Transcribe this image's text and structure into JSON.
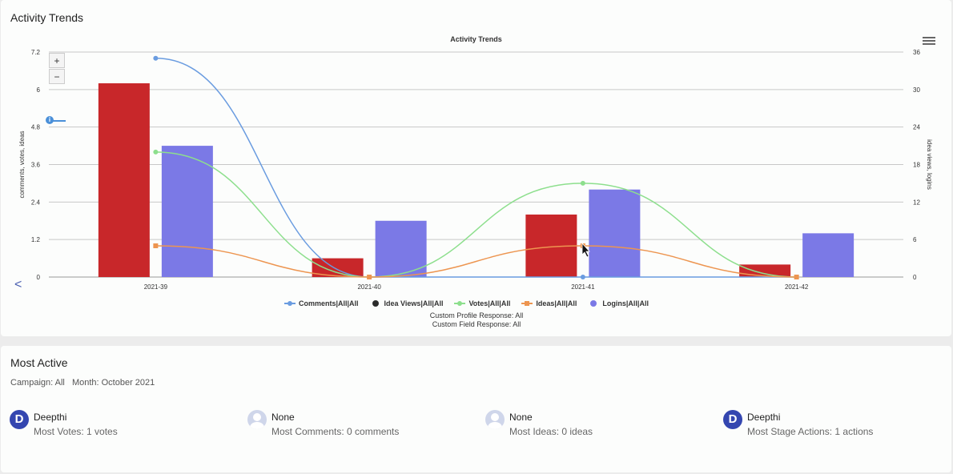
{
  "activity_card": {
    "title": "Activity Trends",
    "zoom_in": "+",
    "zoom_out": "−",
    "back_label": "<",
    "info_label": "i",
    "subtitle_lines": [
      "Custom Profile Response: All",
      "Custom Field Response: All"
    ]
  },
  "chart_data": {
    "type": "bar",
    "title": "Activity Trends",
    "categories": [
      "2021-39",
      "2021-40",
      "2021-41",
      "2021-42"
    ],
    "left_axis": {
      "label": "comments, votes, ideas",
      "ticks": [
        "0",
        "1.2",
        "2.4",
        "3.6",
        "4.8",
        "6",
        "7.2"
      ],
      "range": [
        0,
        7.2
      ]
    },
    "right_axis": {
      "label": "idea views, logins",
      "ticks": [
        "0",
        "6",
        "12",
        "18",
        "24",
        "30",
        "36"
      ],
      "range": [
        0,
        36
      ]
    },
    "series": [
      {
        "name": "Comments|All|All",
        "kind": "line",
        "axis": "left",
        "color": "#6a9ce0",
        "marker": "circle",
        "values": [
          7,
          0,
          0,
          0
        ]
      },
      {
        "name": "Idea Views|All|All",
        "kind": "bar",
        "axis": "right",
        "color": "#c8272a",
        "marker": "circle",
        "legend_color": "#2b2b2b",
        "values": [
          31,
          3,
          10,
          2
        ]
      },
      {
        "name": "Votes|All|All",
        "kind": "line",
        "axis": "left",
        "color": "#8ddf8d",
        "marker": "circle",
        "values": [
          4,
          0,
          3,
          0
        ]
      },
      {
        "name": "Ideas|All|All",
        "kind": "line",
        "axis": "left",
        "color": "#ed9550",
        "marker": "square",
        "values": [
          1,
          0,
          1,
          0
        ]
      },
      {
        "name": "Logins|All|All",
        "kind": "bar",
        "axis": "right",
        "color": "#7b79e6",
        "marker": "circle",
        "values": [
          21,
          9,
          14,
          7
        ]
      }
    ],
    "legend_position": "bottom",
    "grid": true
  },
  "most_active": {
    "title": "Most Active",
    "filters": [
      "Campaign: All",
      "Month: October 2021"
    ],
    "users": [
      {
        "name": "Deepthi",
        "stat": "Most Votes: 1 votes",
        "avatar": "initial",
        "initial": "D"
      },
      {
        "name": "None",
        "stat": "Most Comments: 0 comments",
        "avatar": "placeholder-person-icon"
      },
      {
        "name": "None",
        "stat": "Most Ideas: 0 ideas",
        "avatar": "placeholder-person-icon"
      },
      {
        "name": "Deepthi",
        "stat": "Most Stage Actions: 1 actions",
        "avatar": "initial",
        "initial": "D"
      }
    ]
  }
}
